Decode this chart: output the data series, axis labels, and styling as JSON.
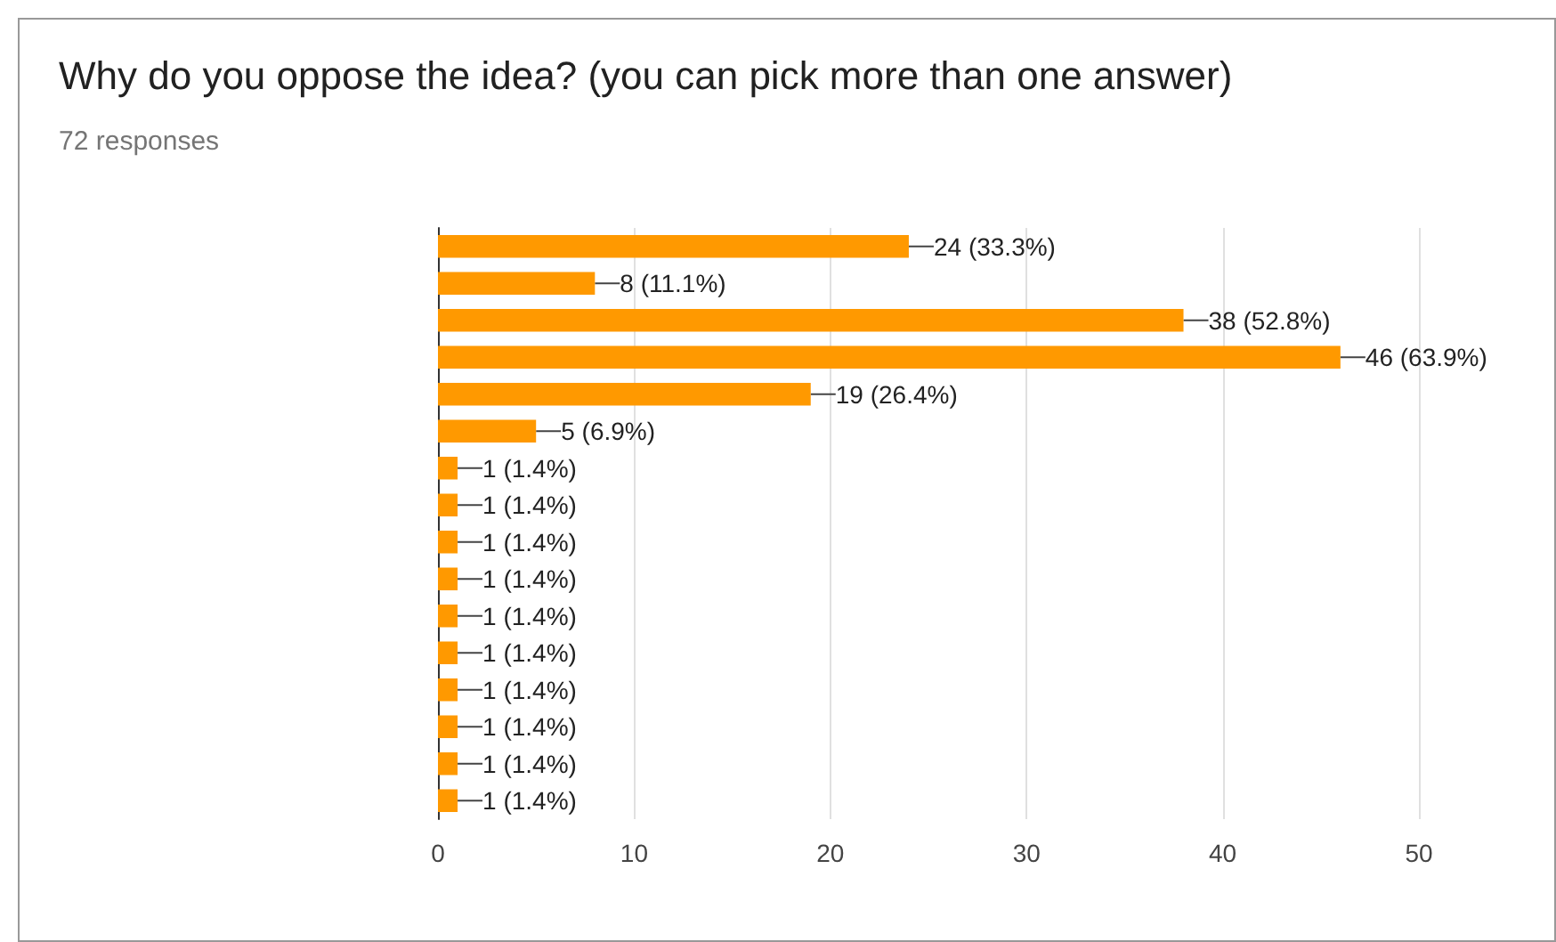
{
  "chart_data": {
    "type": "bar",
    "orientation": "horizontal",
    "title": "Why do you oppose the idea? (you can pick more than one answer)",
    "subtitle": "72 responses",
    "categories": [
      null,
      null,
      null,
      null,
      null,
      null,
      null,
      null,
      null,
      null,
      null,
      null,
      null,
      null,
      null,
      null
    ],
    "values": [
      24,
      8,
      38,
      46,
      19,
      5,
      1,
      1,
      1,
      1,
      1,
      1,
      1,
      1,
      1,
      1
    ],
    "value_labels": [
      "24 (33.3%)",
      "8 (11.1%)",
      "38 (52.8%)",
      "46 (63.9%)",
      "19 (26.4%)",
      "5 (6.9%)",
      "1 (1.4%)",
      "1 (1.4%)",
      "1 (1.4%)",
      "1 (1.4%)",
      "1 (1.4%)",
      "1 (1.4%)",
      "1 (1.4%)",
      "1 (1.4%)",
      "1 (1.4%)",
      "1 (1.4%)"
    ],
    "color": "#ff9900",
    "xlim": [
      0,
      50
    ],
    "xticks": [
      0,
      10,
      20,
      30,
      40,
      50
    ],
    "grid": "x"
  }
}
